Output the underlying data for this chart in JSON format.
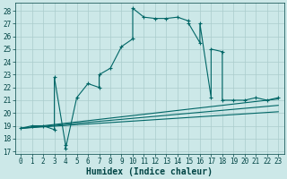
{
  "xlabel": "Humidex (Indice chaleur)",
  "bg_color": "#cce8e8",
  "grid_color": "#aacccc",
  "line_color": "#006666",
  "xlim": [
    -0.5,
    23.5
  ],
  "ylim": [
    16.8,
    28.6
  ],
  "yticks": [
    17,
    18,
    19,
    20,
    21,
    22,
    23,
    24,
    25,
    26,
    27,
    28
  ],
  "xticks": [
    0,
    1,
    2,
    3,
    4,
    5,
    6,
    7,
    8,
    9,
    10,
    11,
    12,
    13,
    14,
    15,
    16,
    17,
    18,
    19,
    20,
    21,
    22,
    23
  ],
  "main_x": [
    0,
    1,
    2,
    3,
    3,
    4,
    4,
    5,
    6,
    7,
    7,
    8,
    9,
    10,
    10,
    11,
    12,
    13,
    14,
    15,
    15,
    16,
    16,
    17,
    17,
    18,
    18,
    19,
    20,
    21,
    22,
    23
  ],
  "main_y": [
    18.8,
    19.0,
    19.0,
    18.7,
    22.8,
    17.5,
    17.2,
    21.2,
    22.3,
    22.0,
    23.0,
    23.5,
    25.2,
    25.8,
    28.2,
    27.5,
    27.4,
    27.4,
    27.5,
    27.2,
    27.0,
    25.5,
    27.0,
    21.2,
    25.0,
    24.8,
    21.0,
    21.0,
    21.0,
    21.2,
    21.0,
    21.2
  ],
  "line2_x": [
    0,
    23
  ],
  "line2_y": [
    18.8,
    21.1
  ],
  "line3_x": [
    0,
    23
  ],
  "line3_y": [
    18.8,
    20.6
  ],
  "line4_x": [
    0,
    23
  ],
  "line4_y": [
    18.8,
    20.1
  ],
  "font_color": "#004444",
  "tick_fontsize": 5.5,
  "label_fontsize": 7,
  "linewidth": 0.8,
  "markersize": 3.5
}
